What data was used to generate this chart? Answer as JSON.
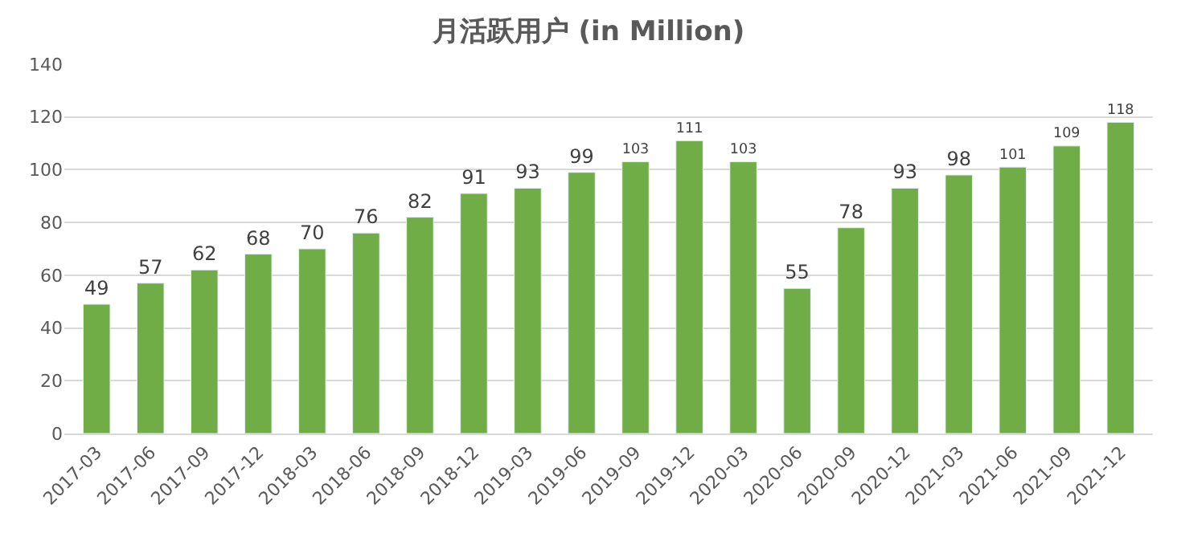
{
  "chart_data": {
    "type": "bar",
    "title": "月活跃用户 (in Million)",
    "categories": [
      "2017-03",
      "2017-06",
      "2017-09",
      "2017-12",
      "2018-03",
      "2018-06",
      "2018-09",
      "2018-12",
      "2019-03",
      "2019-06",
      "2019-09",
      "2019-12",
      "2020-03",
      "2020-06",
      "2020-09",
      "2020-12",
      "2021-03",
      "2021-06",
      "2021-09",
      "2021-12"
    ],
    "values": [
      49,
      57,
      62,
      68,
      70,
      76,
      82,
      91,
      93,
      99,
      103,
      111,
      103,
      55,
      78,
      93,
      98,
      101,
      109,
      118
    ],
    "color": "#70ad47",
    "ylim": [
      0,
      140
    ],
    "yticks": [
      0,
      20,
      40,
      60,
      80,
      100,
      120,
      140
    ],
    "grid": "y",
    "data_labels": true
  }
}
